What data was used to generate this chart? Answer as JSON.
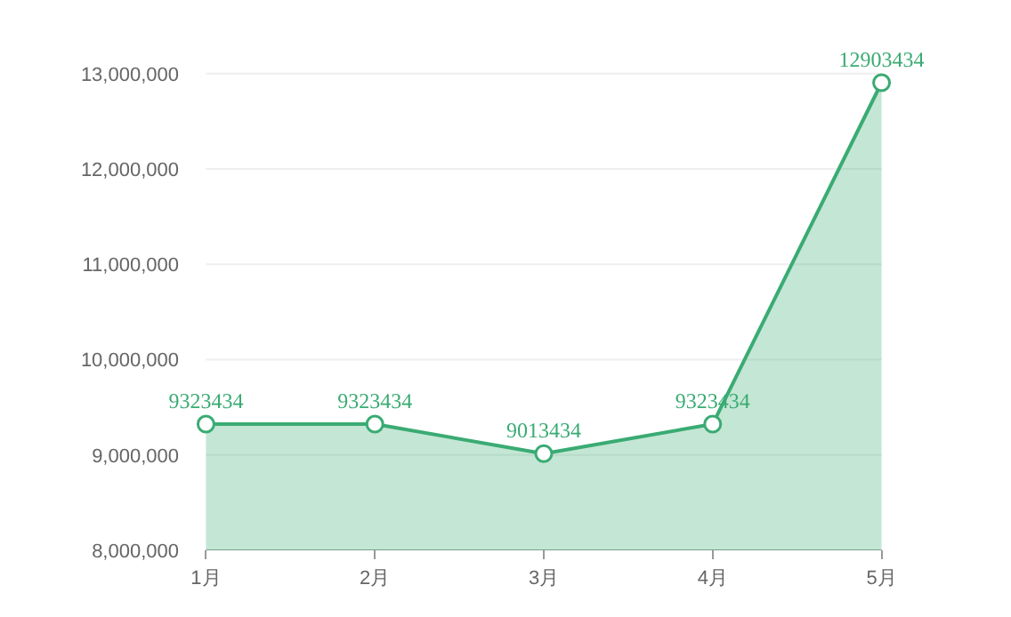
{
  "chart_data": {
    "type": "area",
    "categories": [
      "1月",
      "2月",
      "3月",
      "4月",
      "5月"
    ],
    "series": [
      {
        "color": "#3aab73",
        "values": [
          9323434,
          9323434,
          9013434,
          9323434,
          12903434
        ]
      }
    ],
    "ylim": [
      8000000,
      13000000
    ],
    "yticks": [
      {
        "value": 8000000,
        "label": "8,000,000"
      },
      {
        "value": 9000000,
        "label": "9,000,000"
      },
      {
        "value": 10000000,
        "label": "10,000,000"
      },
      {
        "value": 11000000,
        "label": "11,000,000"
      },
      {
        "value": 12000000,
        "label": "12,000,000"
      },
      {
        "value": 13000000,
        "label": "13,000,000"
      }
    ],
    "grid": "y",
    "marker": "circle",
    "data_labels": true
  }
}
